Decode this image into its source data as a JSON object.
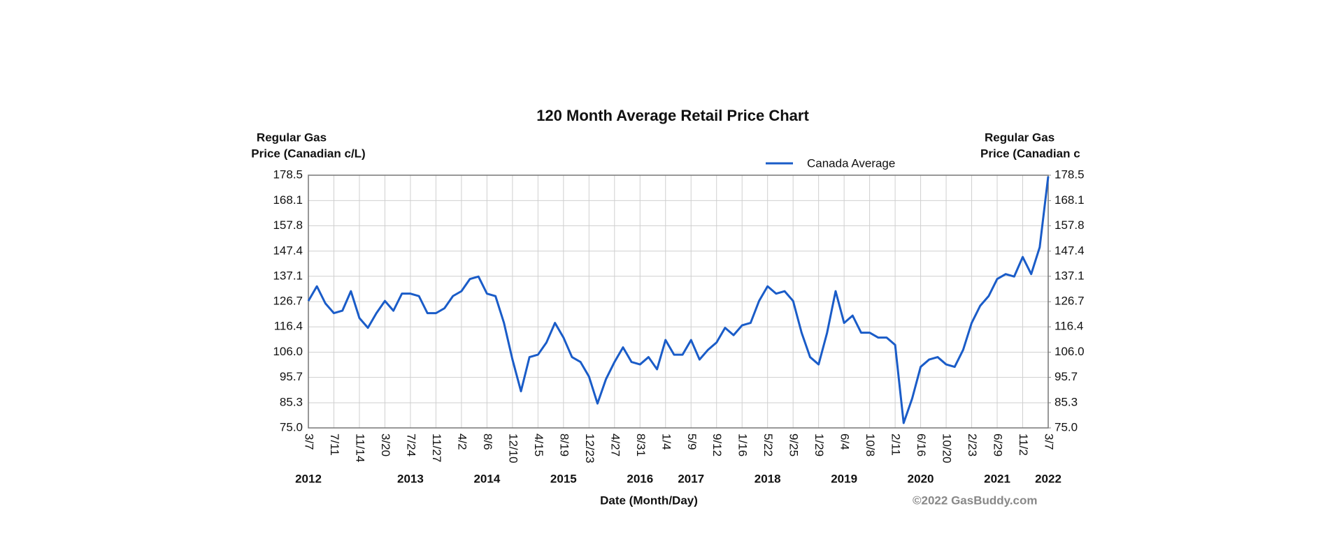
{
  "chart_data": {
    "type": "line",
    "title": "120 Month Average Retail Price Chart",
    "y_label": [
      "Regular Gas",
      "Price (Canadian c/L)"
    ],
    "y2_label": [
      "Regular Gas",
      "Price (Canadian c"
    ],
    "x_label": "Date (Month/Day)",
    "credit": "©2022 GasBuddy.com",
    "legend": "top-right",
    "grid": true,
    "categories": [
      "3/7",
      null,
      null,
      "7/11",
      null,
      null,
      "11/14",
      null,
      null,
      "3/20",
      null,
      null,
      "7/24",
      null,
      null,
      "11/27",
      null,
      null,
      "4/2",
      null,
      null,
      "8/6",
      null,
      null,
      "12/10",
      null,
      null,
      "4/15",
      null,
      null,
      "8/19",
      null,
      null,
      "12/23",
      null,
      null,
      "4/27",
      null,
      null,
      "8/31",
      null,
      null,
      "1/4",
      null,
      null,
      "5/9",
      null,
      null,
      "9/12",
      null,
      null,
      "1/16",
      null,
      null,
      "5/22",
      null,
      null,
      "9/25",
      null,
      null,
      "1/29",
      null,
      null,
      "6/4",
      null,
      null,
      "10/8",
      null,
      null,
      "2/11",
      null,
      null,
      "6/16",
      null,
      null,
      "10/20",
      null,
      null,
      "2/23",
      null,
      null,
      "6/29",
      null,
      null,
      "11/2",
      null,
      null,
      "3/7"
    ],
    "years": [
      "2012",
      null,
      null,
      null,
      null,
      null,
      null,
      null,
      null,
      null,
      null,
      null,
      "2013",
      null,
      null,
      null,
      null,
      null,
      null,
      null,
      null,
      "2014",
      null,
      null,
      null,
      null,
      null,
      null,
      null,
      null,
      "2015",
      null,
      null,
      null,
      null,
      null,
      null,
      null,
      null,
      "2016",
      null,
      null,
      null,
      null,
      null,
      "2017",
      null,
      null,
      null,
      null,
      null,
      null,
      null,
      null,
      "2018",
      null,
      null,
      null,
      null,
      null,
      null,
      null,
      null,
      "2019",
      null,
      null,
      null,
      null,
      null,
      null,
      null,
      null,
      "2020",
      null,
      null,
      null,
      null,
      null,
      null,
      null,
      null,
      "2021",
      null,
      null,
      null,
      null,
      null,
      "2022"
    ],
    "series": [
      {
        "name": "Canada Average",
        "color": "#1a5cc8",
        "values": [
          127,
          133,
          126,
          122,
          123,
          131,
          120,
          116,
          122,
          127,
          123,
          130,
          130,
          129,
          122,
          122,
          124,
          129,
          131,
          136,
          137,
          130,
          129,
          118,
          103,
          90,
          104,
          105,
          110,
          118,
          112,
          104,
          102,
          96,
          85,
          95,
          102,
          108,
          102,
          101,
          104,
          99,
          111,
          105,
          105,
          111,
          103,
          107,
          110,
          116,
          113,
          117,
          118,
          127,
          133,
          130,
          131,
          127,
          114,
          104,
          101,
          114,
          131,
          118,
          121,
          114,
          114,
          112,
          112,
          109,
          77,
          87,
          100,
          103,
          104,
          101,
          100,
          107,
          118,
          125,
          129,
          136,
          138,
          137,
          145,
          138,
          149,
          178
        ]
      }
    ],
    "ylim": [
      75,
      178.5
    ],
    "yticks": [
      {
        "value": 75,
        "label": "75.0"
      },
      85.3,
      95.7,
      {
        "value": 106,
        "label": "106.0"
      },
      116.4,
      126.7,
      137.1,
      147.4,
      157.8,
      168.1,
      178.5
    ],
    "y2lim": [
      75,
      178.5
    ],
    "y2ticks": [
      {
        "value": 75,
        "label": "75.0"
      },
      85.3,
      95.7,
      {
        "value": 106,
        "label": "106.0"
      },
      116.4,
      126.7,
      137.1,
      147.4,
      157.8,
      168.1,
      178.5
    ]
  }
}
